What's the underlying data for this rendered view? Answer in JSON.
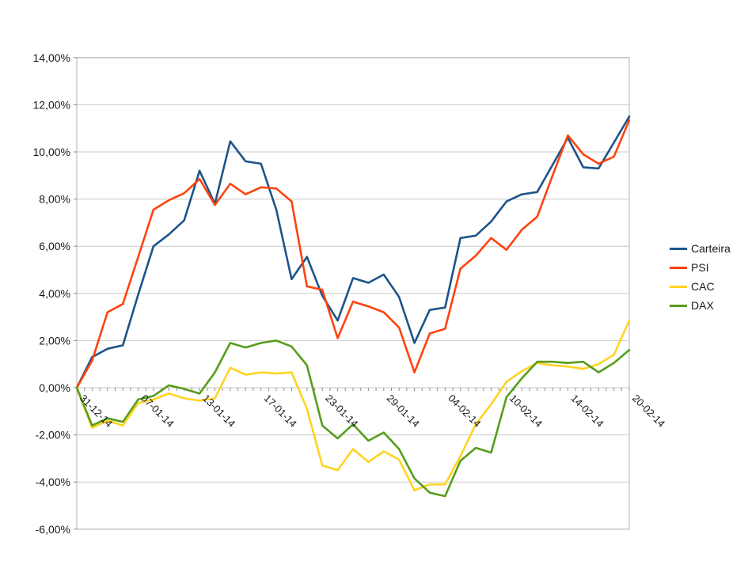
{
  "page": {
    "background": "#FFFFFF",
    "description": "Line chart comparing portfolio (Carteira) performance vs PSI, CAC and DAX indices in percent"
  },
  "chart_data": {
    "type": "line",
    "n_points": 37,
    "x_tick_labels": [
      {
        "index": 0,
        "label": "31-12-14"
      },
      {
        "index": 4,
        "label": "07-01-14"
      },
      {
        "index": 8,
        "label": "13-01-14"
      },
      {
        "index": 12,
        "label": "17-01-14"
      },
      {
        "index": 16,
        "label": "23-01-14"
      },
      {
        "index": 20,
        "label": "29-01-14"
      },
      {
        "index": 24,
        "label": "04-02-14"
      },
      {
        "index": 28,
        "label": "10-02-14"
      },
      {
        "index": 32,
        "label": "14-02-14"
      },
      {
        "index": 36,
        "label": "20-02-14"
      }
    ],
    "y_axis": {
      "min": -6,
      "max": 14,
      "step": 2,
      "tick_labels": [
        "14,00%",
        "12,00%",
        "10,00%",
        "8,00%",
        "6,00%",
        "4,00%",
        "2,00%",
        "0,00%",
        "-2,00%",
        "-4,00%",
        "-6,00%"
      ],
      "number_format": "percent with comma decimals"
    },
    "grid": true,
    "legend": {
      "position": "right",
      "entries": [
        "Carteira",
        "PSI",
        "CAC",
        "DAX"
      ]
    },
    "series": [
      {
        "name": "Carteira",
        "color": "#1D5489",
        "values": [
          0.0,
          1.3,
          1.65,
          1.8,
          3.95,
          6.0,
          6.5,
          7.1,
          9.2,
          7.8,
          10.45,
          9.6,
          9.5,
          7.55,
          4.6,
          5.55,
          3.9,
          2.85,
          4.65,
          4.45,
          4.8,
          3.85,
          1.9,
          3.3,
          3.4,
          6.35,
          6.45,
          7.05,
          7.9,
          8.2,
          8.3,
          9.45,
          10.6,
          9.35,
          9.3,
          10.4,
          11.5
        ]
      },
      {
        "name": "PSI",
        "color": "#FF420E",
        "values": [
          0.0,
          1.15,
          3.2,
          3.55,
          5.55,
          7.55,
          7.95,
          8.25,
          8.85,
          7.75,
          8.65,
          8.2,
          8.5,
          8.45,
          7.9,
          4.3,
          4.15,
          2.1,
          3.65,
          3.45,
          3.2,
          2.55,
          0.65,
          2.3,
          2.5,
          5.05,
          5.6,
          6.35,
          5.85,
          6.7,
          7.25,
          9.0,
          10.7,
          9.9,
          9.5,
          9.8,
          11.35
        ]
      },
      {
        "name": "CAC",
        "color": "#FFD320",
        "values": [
          0.0,
          -1.7,
          -1.4,
          -1.6,
          -0.65,
          -0.5,
          -0.25,
          -0.45,
          -0.55,
          -0.45,
          0.85,
          0.55,
          0.65,
          0.6,
          0.65,
          -0.9,
          -3.3,
          -3.5,
          -2.6,
          -3.15,
          -2.7,
          -3.05,
          -4.35,
          -4.1,
          -4.1,
          -2.9,
          -1.55,
          -0.7,
          0.25,
          0.7,
          1.05,
          0.95,
          0.9,
          0.8,
          1.0,
          1.4,
          2.85
        ]
      },
      {
        "name": "DAX",
        "color": "#579D1C",
        "values": [
          0.0,
          -1.6,
          -1.3,
          -1.45,
          -0.5,
          -0.35,
          0.1,
          -0.05,
          -0.25,
          0.65,
          1.9,
          1.7,
          1.9,
          2.0,
          1.75,
          0.95,
          -1.6,
          -2.15,
          -1.55,
          -2.25,
          -1.9,
          -2.6,
          -3.85,
          -4.45,
          -4.6,
          -3.1,
          -2.55,
          -2.75,
          -0.4,
          0.4,
          1.1,
          1.1,
          1.05,
          1.1,
          0.65,
          1.05,
          1.6
        ]
      }
    ],
    "style_colors": {
      "gridline": "#C9C9C9",
      "plot_border": "#B3B3B3",
      "tick": "#8C8C8C",
      "label_text": "#1A1A1A"
    }
  }
}
